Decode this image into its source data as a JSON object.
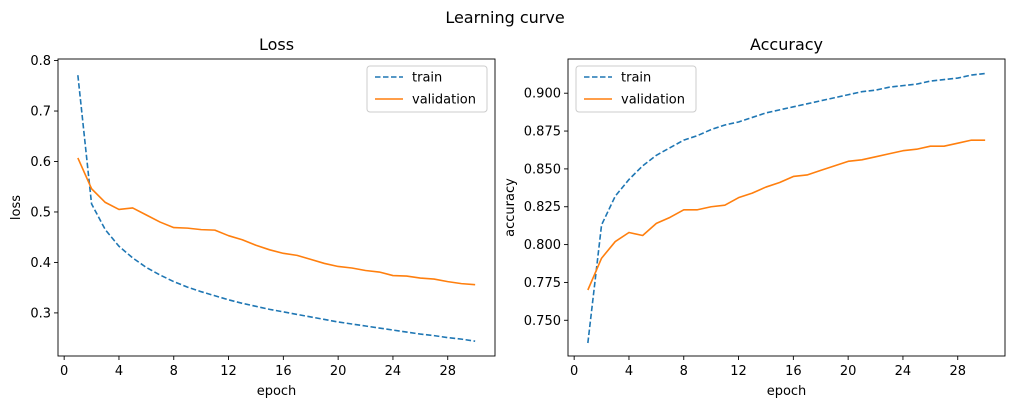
{
  "figure": {
    "suptitle": "Learning curve"
  },
  "chart_data": [
    {
      "type": "line",
      "title": "Loss",
      "xlabel": "epoch",
      "ylabel": "loss",
      "xlim": [
        -0.45,
        31.45
      ],
      "ylim": [
        0.2146,
        0.8031
      ],
      "xticks": [
        0,
        4,
        8,
        12,
        16,
        20,
        24,
        28
      ],
      "yticks": [
        0.3,
        0.4,
        0.5,
        0.6,
        0.7,
        0.8
      ],
      "ytick_format": 1,
      "grid": false,
      "legend": {
        "loc": "upper right",
        "entries": [
          "train",
          "validation"
        ]
      },
      "x": [
        1,
        2,
        3,
        4,
        5,
        6,
        7,
        8,
        9,
        10,
        11,
        12,
        13,
        14,
        15,
        16,
        17,
        18,
        19,
        20,
        21,
        22,
        23,
        24,
        25,
        26,
        27,
        28,
        29,
        30
      ],
      "series": [
        {
          "name": "train",
          "color": "#1f77b4",
          "style": "dashed",
          "values": [
            0.771,
            0.516,
            0.465,
            0.432,
            0.409,
            0.39,
            0.375,
            0.362,
            0.351,
            0.342,
            0.334,
            0.326,
            0.319,
            0.313,
            0.307,
            0.302,
            0.297,
            0.292,
            0.287,
            0.282,
            0.278,
            0.274,
            0.27,
            0.266,
            0.262,
            0.258,
            0.255,
            0.251,
            0.248,
            0.244
          ]
        },
        {
          "name": "validation",
          "color": "#ff7f0e",
          "style": "solid",
          "values": [
            0.607,
            0.546,
            0.519,
            0.505,
            0.508,
            0.494,
            0.48,
            0.469,
            0.468,
            0.465,
            0.464,
            0.453,
            0.445,
            0.434,
            0.425,
            0.418,
            0.414,
            0.406,
            0.398,
            0.392,
            0.389,
            0.384,
            0.381,
            0.374,
            0.373,
            0.369,
            0.367,
            0.362,
            0.358,
            0.356
          ]
        }
      ]
    },
    {
      "type": "line",
      "title": "Accuracy",
      "xlabel": "epoch",
      "ylabel": "accuracy",
      "xlim": [
        -0.45,
        31.45
      ],
      "ylim": [
        0.7264,
        0.9226
      ],
      "xticks": [
        0,
        4,
        8,
        12,
        16,
        20,
        24,
        28
      ],
      "yticks": [
        0.75,
        0.775,
        0.8,
        0.825,
        0.85,
        0.875,
        0.9
      ],
      "ytick_format": 3,
      "grid": false,
      "legend": {
        "loc": "upper left",
        "entries": [
          "train",
          "validation"
        ]
      },
      "x": [
        1,
        2,
        3,
        4,
        5,
        6,
        7,
        8,
        9,
        10,
        11,
        12,
        13,
        14,
        15,
        16,
        17,
        18,
        19,
        20,
        21,
        22,
        23,
        24,
        25,
        26,
        27,
        28,
        29,
        30
      ],
      "series": [
        {
          "name": "train",
          "color": "#1f77b4",
          "style": "dashed",
          "values": [
            0.735,
            0.813,
            0.832,
            0.843,
            0.852,
            0.859,
            0.864,
            0.869,
            0.872,
            0.876,
            0.879,
            0.881,
            0.884,
            0.887,
            0.889,
            0.891,
            0.893,
            0.895,
            0.897,
            0.899,
            0.901,
            0.902,
            0.904,
            0.905,
            0.906,
            0.908,
            0.909,
            0.91,
            0.912,
            0.913
          ]
        },
        {
          "name": "validation",
          "color": "#ff7f0e",
          "style": "solid",
          "values": [
            0.77,
            0.791,
            0.802,
            0.808,
            0.806,
            0.814,
            0.818,
            0.823,
            0.823,
            0.825,
            0.826,
            0.831,
            0.834,
            0.838,
            0.841,
            0.845,
            0.846,
            0.849,
            0.852,
            0.855,
            0.856,
            0.858,
            0.86,
            0.862,
            0.863,
            0.865,
            0.865,
            0.867,
            0.869,
            0.869
          ]
        }
      ]
    }
  ]
}
